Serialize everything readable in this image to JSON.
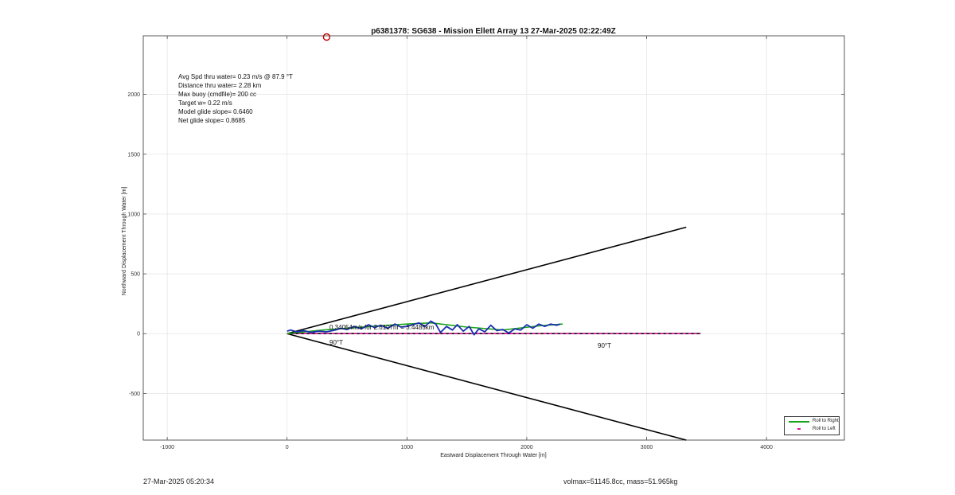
{
  "chart_data": {
    "type": "line",
    "title": "p6381378: SG638 - Mission Ellett Array 13 27-Mar-2025 02:22:49Z",
    "xlabel": "Eastward Displacement Through Water [m]",
    "ylabel": "Northward Displacement Through Water [m]",
    "xlim": [
      -1200,
      4650
    ],
    "ylim": [
      -890,
      2490
    ],
    "xticks": [
      -1000,
      0,
      1000,
      2000,
      3000,
      4000
    ],
    "yticks": [
      -500,
      0,
      500,
      1000,
      1500,
      2000
    ],
    "grid": true,
    "legend_position": "bottom-right",
    "annotation_lines": [
      "Avg Spd thru water=  0.23 m/s @  87.9 °T",
      "Distance thru water=  2.28 km",
      "Max buoy (cmdfile)= 200 cc",
      "Target w= 0.22 m/s",
      "Model glide slope= 0.6460",
      "Net glide slope= 0.8685"
    ],
    "current_label": "0.34054m/s for 2.6107hr = 3.4485km",
    "heading_label_left": "90°T",
    "heading_label_right": "90°T",
    "series": [
      {
        "name": "Roll to Right",
        "color": "#1aa31a",
        "style": "solid",
        "x": [
          0,
          300,
          700,
          1000,
          1200,
          1500,
          1800,
          2100,
          2300
        ],
        "y": [
          0,
          30,
          60,
          80,
          90,
          55,
          30,
          65,
          80
        ]
      },
      {
        "name": "Roll to Left",
        "color": "#e0109a",
        "style": "dashed",
        "x": [
          0,
          3450
        ],
        "y": [
          0,
          0
        ]
      }
    ],
    "track": {
      "color": "#1a2eb0",
      "x": [
        0,
        30,
        80,
        140,
        200,
        260,
        330,
        400,
        450,
        500,
        560,
        620,
        680,
        730,
        780,
        840,
        900,
        950,
        1000,
        1050,
        1100,
        1150,
        1200,
        1240,
        1280,
        1330,
        1380,
        1420,
        1470,
        1520,
        1560,
        1600,
        1650,
        1700,
        1750,
        1800,
        1850,
        1900,
        1950,
        2000,
        2050,
        2100,
        2150,
        2200,
        2250,
        2280
      ],
      "y": [
        20,
        30,
        15,
        25,
        10,
        20,
        15,
        30,
        45,
        35,
        60,
        40,
        75,
        50,
        70,
        45,
        80,
        55,
        60,
        75,
        90,
        60,
        105,
        80,
        10,
        60,
        30,
        75,
        20,
        60,
        -10,
        40,
        15,
        70,
        25,
        35,
        5,
        40,
        30,
        75,
        45,
        80,
        60,
        80,
        70,
        80
      ]
    },
    "envelope": {
      "color": "#000000",
      "upper": {
        "x": [
          0,
          3330
        ],
        "y": [
          0,
          890
        ]
      },
      "lower": {
        "x": [
          0,
          3330
        ],
        "y": [
          0,
          -890
        ]
      },
      "current": {
        "x": [
          0,
          3450
        ],
        "y": [
          0,
          0
        ]
      }
    },
    "start_marker": {
      "x": 330,
      "y": 2480,
      "color": "#c00000"
    }
  },
  "footer": {
    "timestamp": "27-Mar-2025 05:20:34",
    "stats": "volmax=51145.8cc, mass=51.965kg"
  }
}
